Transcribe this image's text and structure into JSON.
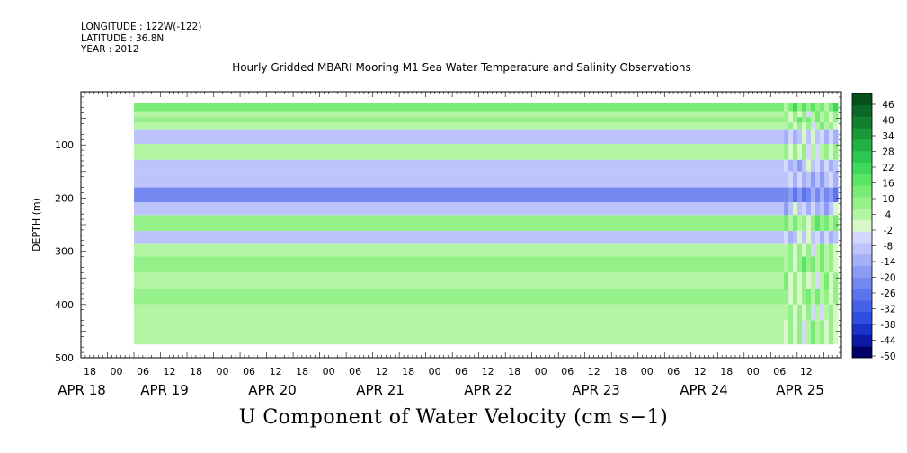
{
  "header": {
    "longitude": "LONGITUDE : 122W(-122)",
    "latitude": "LATITUDE : 36.8N",
    "year": "YEAR : 2012"
  },
  "title": "Hourly Gridded MBARI Mooring M1 Sea Water Temperature and Salinity Observations",
  "colors": {
    "scale": [
      "#000066",
      "#0d1aa6",
      "#1a33cc",
      "#2e4ee0",
      "#4561e8",
      "#5c74ee",
      "#7488f2",
      "#8c9cf5",
      "#a4b0f8",
      "#bcc4fb",
      "#d4d8fd",
      "#d8f8c8",
      "#b4f5a4",
      "#96f08a",
      "#78eb74",
      "#5ae466",
      "#40d85a",
      "#2ec650",
      "#22b044",
      "#1a9838",
      "#12802e",
      "#0c6826",
      "#06501c"
    ]
  },
  "chart_data": {
    "type": "heatmap",
    "title": "U Component of Water Velocity (cm s-1)",
    "xlabel": "",
    "ylabel": "DEPTH (m)",
    "ylim": [
      500,
      0
    ],
    "y_ticks": [
      100,
      200,
      300,
      400,
      500
    ],
    "x_tick_labels": [
      "18",
      "00",
      "06",
      "12",
      "18",
      "00",
      "06",
      "12",
      "18",
      "00",
      "06",
      "12",
      "18",
      "00",
      "06",
      "12",
      "18",
      "00",
      "06",
      "12",
      "18",
      "00",
      "06",
      "12",
      "18",
      "00",
      "06",
      "12"
    ],
    "x_date_labels": [
      "APR 18",
      "APR 19",
      "APR 20",
      "APR 21",
      "APR 22",
      "APR 23",
      "APR 24",
      "APR 25"
    ],
    "colorbar_labels": [
      "46",
      "40",
      "34",
      "28",
      "22",
      "16",
      "10",
      "4",
      "-2",
      "-8",
      "-14",
      "-20",
      "-26",
      "-32",
      "-38",
      "-44",
      "-50"
    ],
    "time_range": [
      "2012-04-18T12:00",
      "2012-04-25T16:00"
    ],
    "data_start": "2012-04-19T00:00",
    "data_change": "2012-04-25T03:00",
    "depth_bands": [
      {
        "depth": [
          22,
          38
        ],
        "u": 14
      },
      {
        "depth": [
          38,
          48
        ],
        "u": 6
      },
      {
        "depth": [
          48,
          58
        ],
        "u": 10
      },
      {
        "depth": [
          58,
          72
        ],
        "u": 6
      },
      {
        "depth": [
          72,
          98
        ],
        "u": -6
      },
      {
        "depth": [
          98,
          128
        ],
        "u": 4
      },
      {
        "depth": [
          128,
          150
        ],
        "u": -8
      },
      {
        "depth": [
          150,
          180
        ],
        "u": -10
      },
      {
        "depth": [
          180,
          208
        ],
        "u": -20
      },
      {
        "depth": [
          208,
          232
        ],
        "u": -8
      },
      {
        "depth": [
          232,
          262
        ],
        "u": 10
      },
      {
        "depth": [
          262,
          285
        ],
        "u": -6
      },
      {
        "depth": [
          285,
          310
        ],
        "u": 6
      },
      {
        "depth": [
          310,
          340
        ],
        "u": 10
      },
      {
        "depth": [
          340,
          370
        ],
        "u": 5
      },
      {
        "depth": [
          370,
          400
        ],
        "u": 8
      },
      {
        "depth": [
          400,
          430
        ],
        "u": 4
      },
      {
        "depth": [
          430,
          475
        ],
        "u": 6
      }
    ]
  },
  "bottom_title": "U Component of Water Velocity (cm s−1)"
}
